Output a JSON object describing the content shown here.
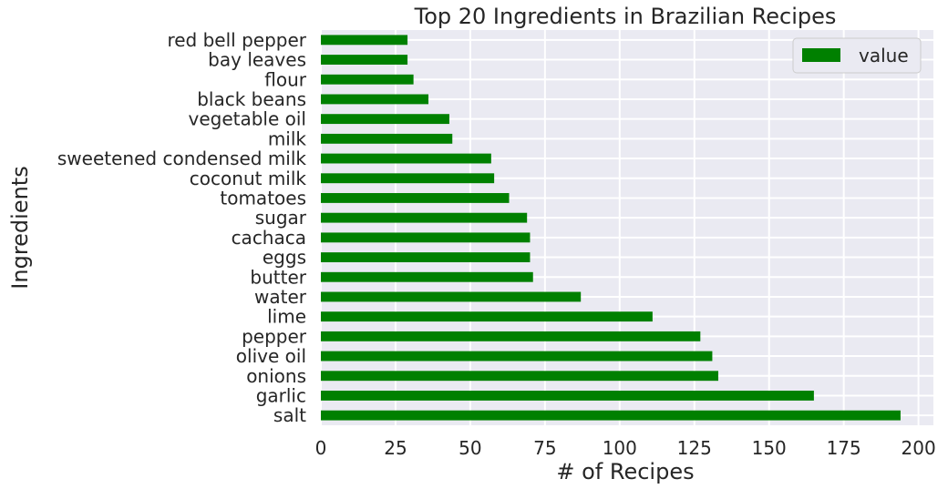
{
  "chart_data": {
    "type": "bar",
    "orientation": "horizontal",
    "title": "Top 20 Ingredients in Brazilian Recipes",
    "xlabel": "# of Recipes",
    "ylabel": "Ingredients",
    "xlim": [
      0,
      205
    ],
    "xticks": [
      "0",
      "25",
      "50",
      "75",
      "100",
      "125",
      "150",
      "175",
      "200"
    ],
    "grid": true,
    "legend_position": "top-right",
    "bar_color": "#008000",
    "background_color": "#EAEAF2",
    "categories": [
      "salt",
      "garlic",
      "onions",
      "olive oil",
      "pepper",
      "lime",
      "water",
      "butter",
      "eggs",
      "cachaca",
      "sugar",
      "tomatoes",
      "coconut milk",
      "sweetened condensed milk",
      "milk",
      "vegetable oil",
      "black beans",
      "flour",
      "bay leaves",
      "red bell pepper"
    ],
    "series": [
      {
        "name": "value",
        "values": [
          194,
          165,
          133,
          131,
          127,
          111,
          87,
          71,
          70,
          70,
          69,
          63,
          58,
          57,
          44,
          43,
          36,
          31,
          29,
          29
        ]
      }
    ]
  }
}
